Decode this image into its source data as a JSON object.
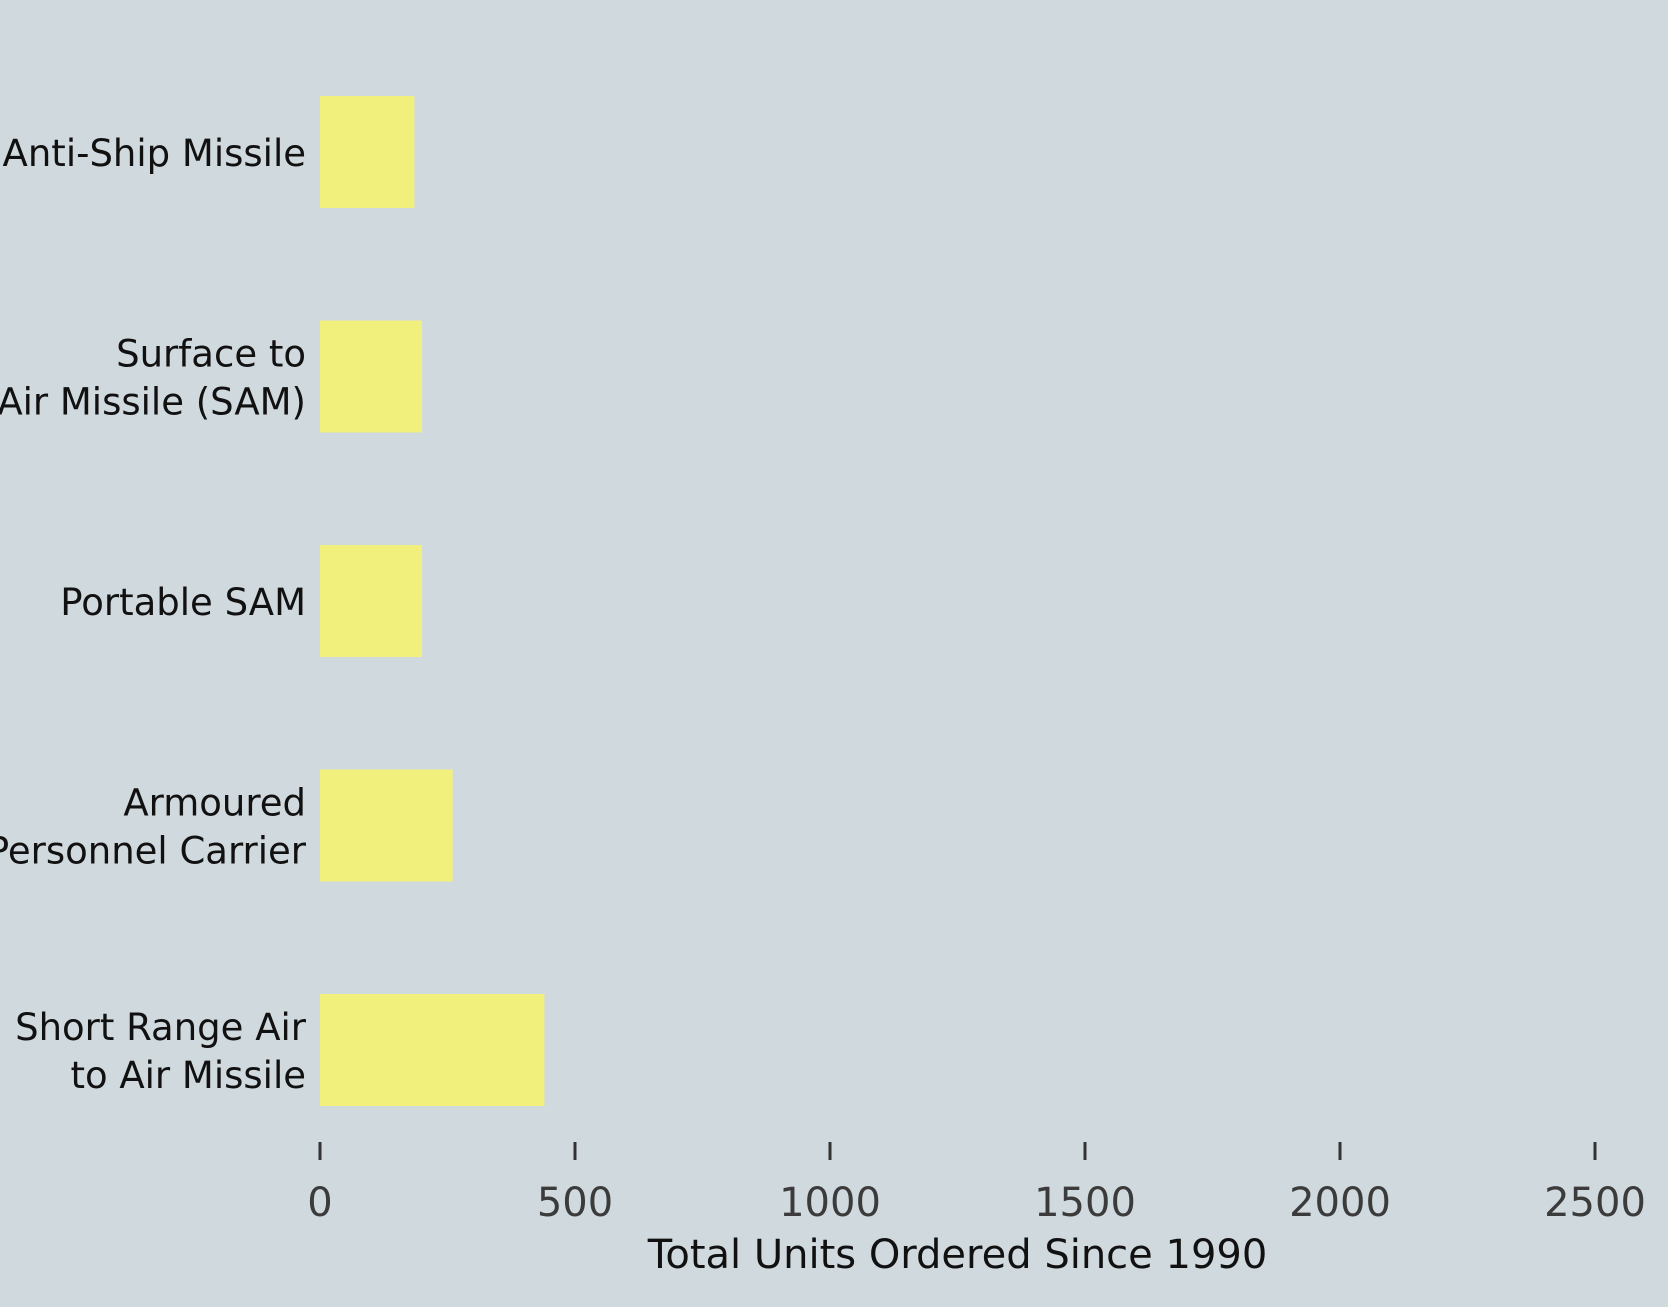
{
  "chart_data": {
    "type": "bar",
    "orientation": "horizontal",
    "categories": [
      [
        "Anti-Ship Missile"
      ],
      [
        "Surface to",
        "Air Missile (SAM)"
      ],
      [
        "Portable SAM"
      ],
      [
        "Armoured",
        "Personnel Carrier"
      ],
      [
        "Short Range Air",
        "to Air Missile"
      ]
    ],
    "values": [
      185,
      200,
      200,
      260,
      440
    ],
    "xlabel": "Total Units Ordered Since 1990",
    "ylabel": "",
    "title": "",
    "xlim": [
      0,
      2500
    ],
    "xticks": [
      0,
      500,
      1000,
      1500,
      2000,
      2500
    ],
    "grid": false,
    "colors": {
      "background": "#d0d9de",
      "bar": "#f2f07d",
      "category_text": "#111111",
      "tick_text": "#3b3b3b",
      "tick_mark": "#333333"
    }
  }
}
